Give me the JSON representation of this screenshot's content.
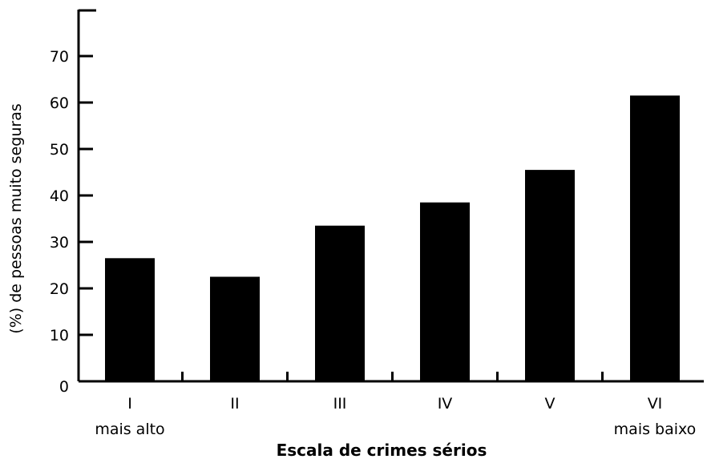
{
  "chart_data": {
    "type": "bar",
    "title": "",
    "xlabel": "Escala de crimes sérios",
    "ylabel": "(%) de pessoas muito seguras",
    "categories": [
      "I",
      "II",
      "III",
      "IV",
      "V",
      "VI"
    ],
    "category_sublabels": [
      "mais alto",
      "",
      "",
      "",
      "",
      "mais baixo"
    ],
    "values": [
      26.5,
      22.5,
      33.5,
      38.5,
      45.5,
      61.5
    ],
    "ylim": [
      0,
      80
    ],
    "yticks": [
      0,
      10,
      20,
      30,
      40,
      50,
      60,
      70
    ],
    "grid": false,
    "bar_color": "#000000",
    "axis_color": "#000000"
  }
}
